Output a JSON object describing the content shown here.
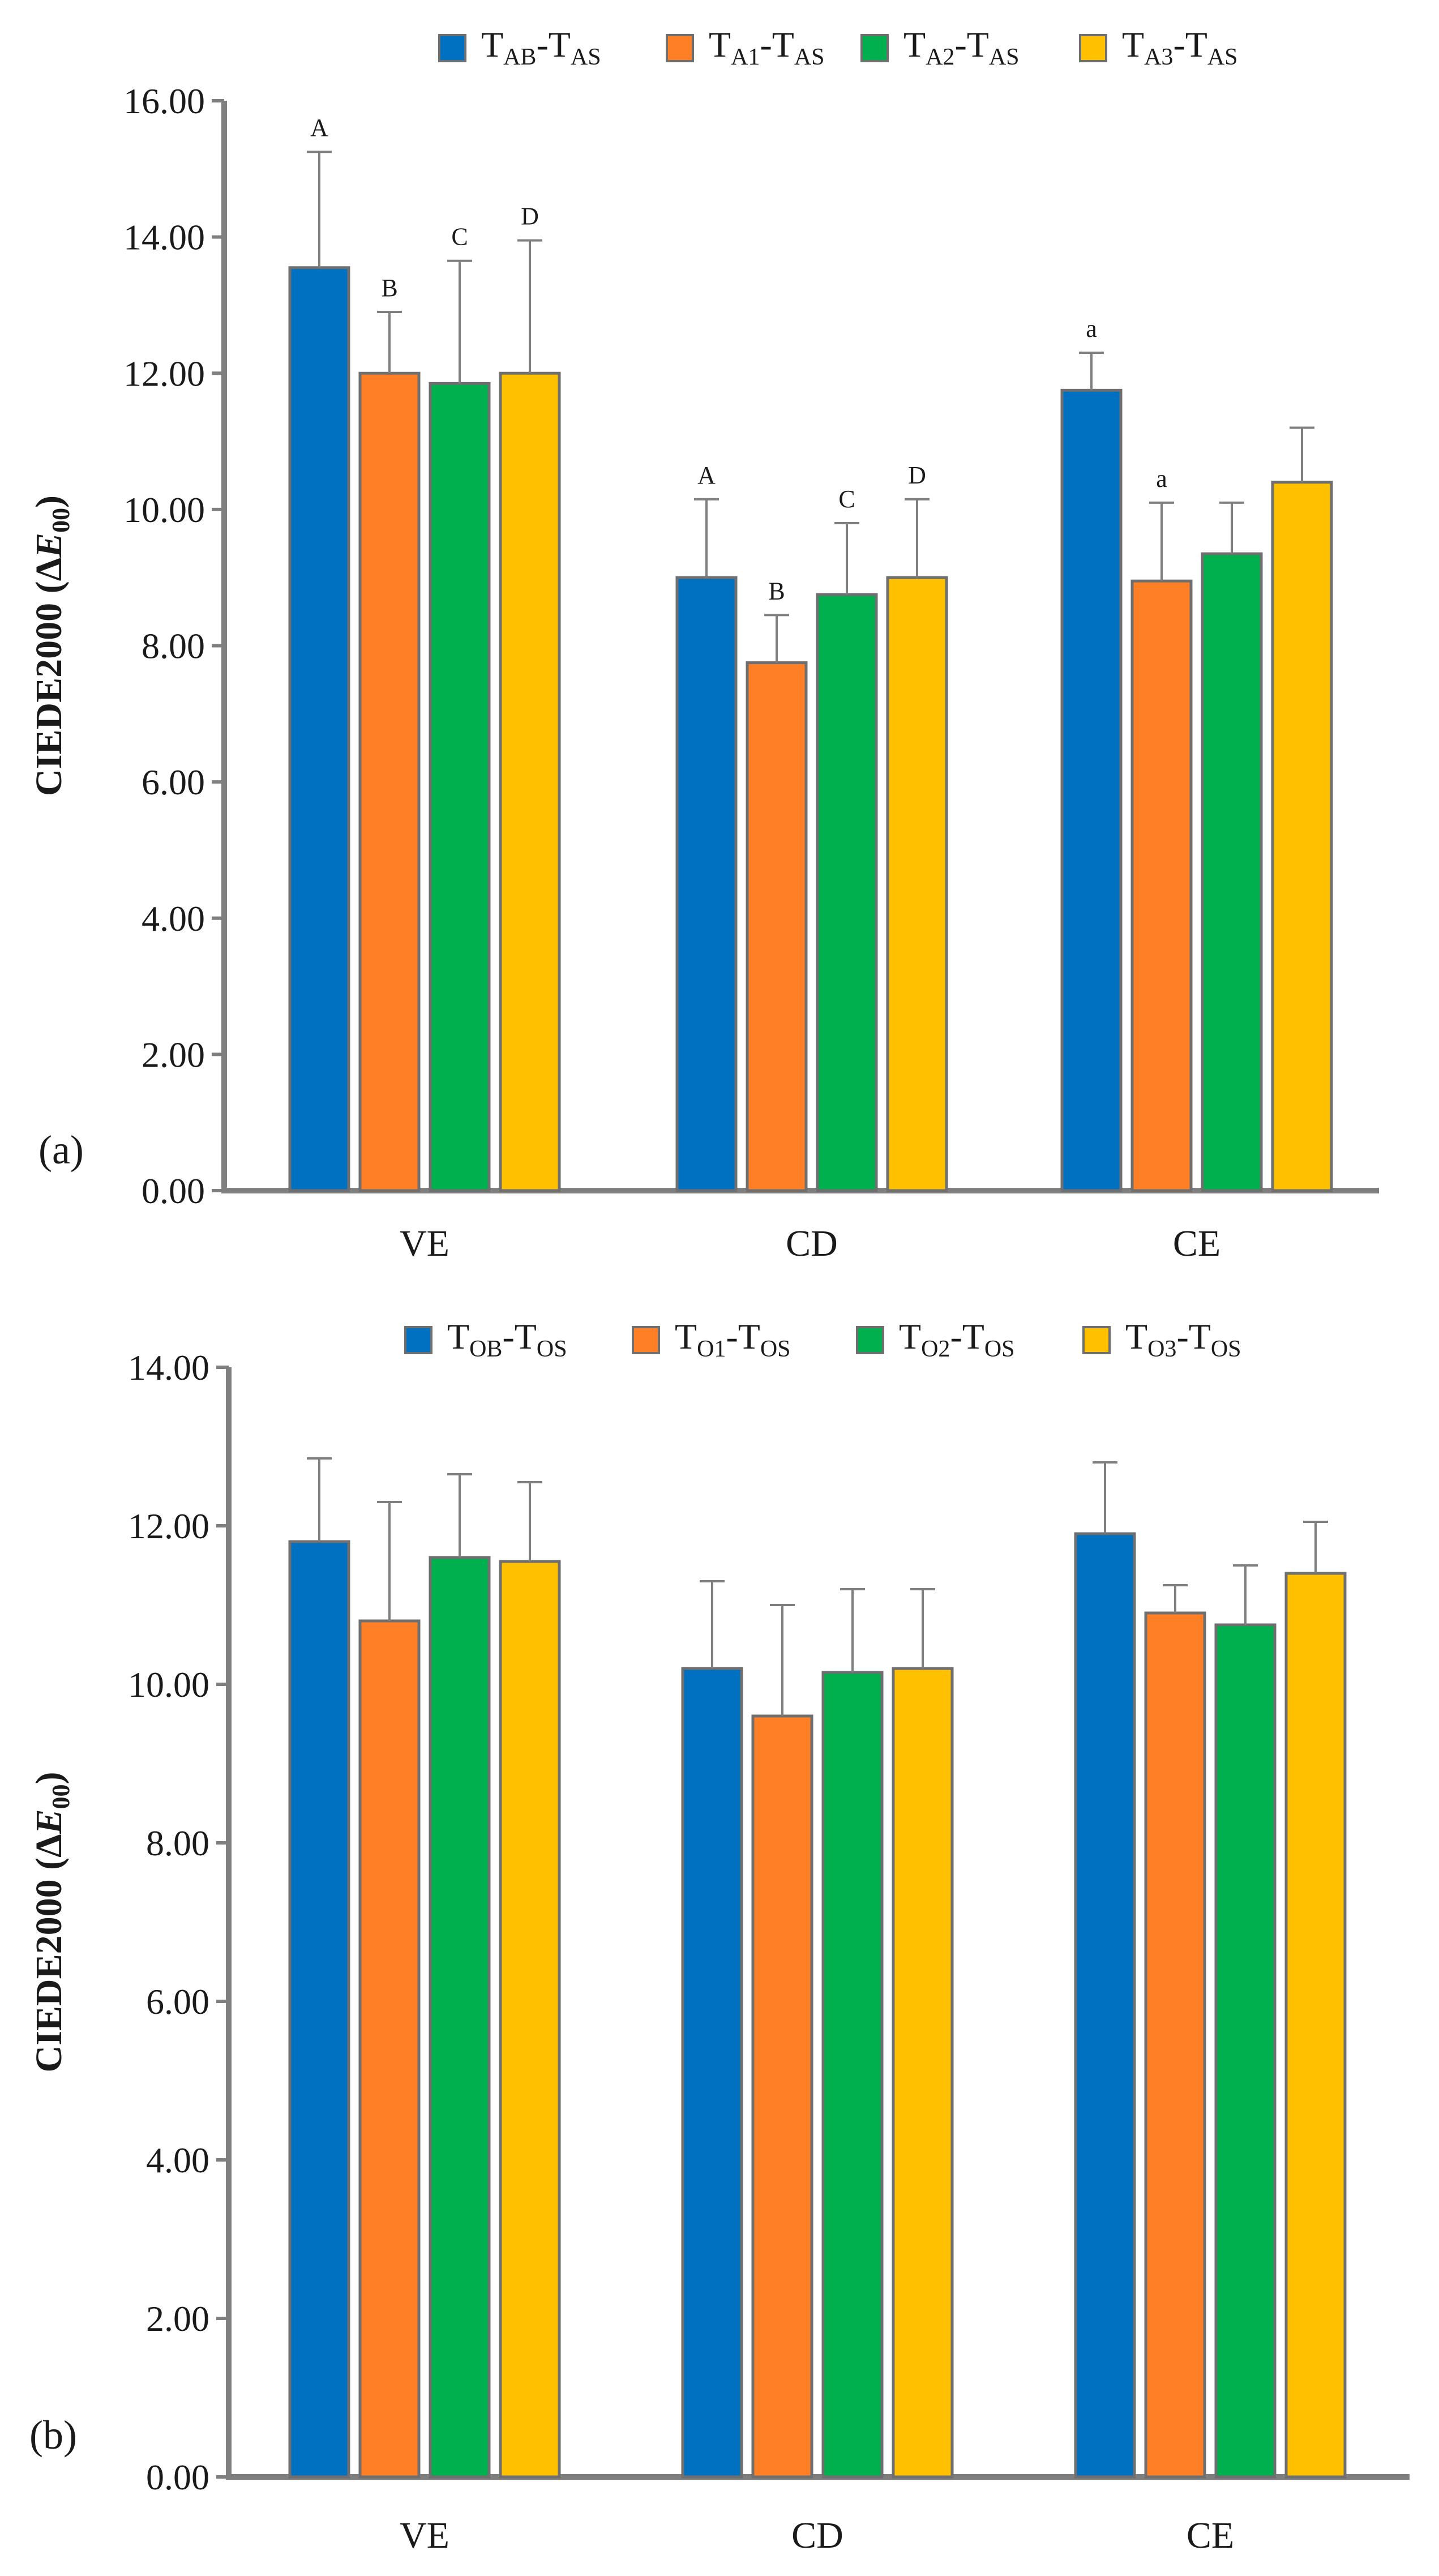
{
  "colors": {
    "series": [
      "#0070c0",
      "#ff7f27",
      "#00b04f",
      "#ffc000"
    ],
    "bar_stroke": "#6f6f6f",
    "axis": "#7f7f7f",
    "error_bar": "#7f7f7f"
  },
  "chart_data": [
    {
      "type": "bar",
      "panel_label": "(a)",
      "categories": [
        "VE",
        "CD",
        "CE"
      ],
      "ylim": [
        0,
        16
      ],
      "yticks": [
        "0.00",
        "2.00",
        "4.00",
        "6.00",
        "8.00",
        "10.00",
        "12.00",
        "14.00",
        "16.00"
      ],
      "ylabel": {
        "main": "CIEDE2000 (Δ",
        "var": "E",
        "sub": "00",
        "close": ")"
      },
      "legend_position": "top",
      "grid": false,
      "series": [
        {
          "name": {
            "base1": "T",
            "sub1": "AB",
            "base2": "-T",
            "sub2": "AS"
          },
          "values": [
            13.55,
            9.0,
            11.75
          ],
          "errors": [
            1.7,
            1.15,
            0.55
          ],
          "labels": [
            "A",
            "A",
            "a"
          ]
        },
        {
          "name": {
            "base1": "T",
            "sub1": "A1",
            "base2": "-T",
            "sub2": "AS"
          },
          "values": [
            12.0,
            7.75,
            8.95
          ],
          "errors": [
            0.9,
            0.7,
            1.15
          ],
          "labels": [
            "B",
            "B",
            "a"
          ]
        },
        {
          "name": {
            "base1": "T",
            "sub1": "A2",
            "base2": "-T",
            "sub2": "AS"
          },
          "values": [
            11.85,
            8.75,
            9.35
          ],
          "errors": [
            1.8,
            1.05,
            0.75
          ],
          "labels": [
            "C",
            "C",
            ""
          ]
        },
        {
          "name": {
            "base1": "T",
            "sub1": "A3",
            "base2": "-T",
            "sub2": "AS"
          },
          "values": [
            12.0,
            9.0,
            10.4
          ],
          "errors": [
            1.95,
            1.15,
            0.8
          ],
          "labels": [
            "D",
            "D",
            ""
          ]
        }
      ]
    },
    {
      "type": "bar",
      "panel_label": "(b)",
      "categories": [
        "VE",
        "CD",
        "CE"
      ],
      "ylim": [
        0,
        14
      ],
      "yticks": [
        "0.00",
        "2.00",
        "4.00",
        "6.00",
        "8.00",
        "10.00",
        "12.00",
        "14.00"
      ],
      "ylabel": {
        "main": "CIEDE2000 (Δ",
        "var": "E",
        "sub": "00",
        "close": ")"
      },
      "legend_position": "top",
      "grid": false,
      "series": [
        {
          "name": {
            "base1": "T",
            "sub1": "OB",
            "base2": "-T",
            "sub2": "OS"
          },
          "values": [
            11.8,
            10.2,
            11.9
          ],
          "errors": [
            1.05,
            1.1,
            0.9
          ],
          "labels": [
            "",
            "",
            ""
          ]
        },
        {
          "name": {
            "base1": "T",
            "sub1": "O1",
            "base2": "-T",
            "sub2": "OS"
          },
          "values": [
            10.8,
            9.6,
            10.9
          ],
          "errors": [
            1.5,
            1.4,
            0.35
          ],
          "labels": [
            "",
            "",
            ""
          ]
        },
        {
          "name": {
            "base1": "T",
            "sub1": "O2",
            "base2": "-T",
            "sub2": "OS"
          },
          "values": [
            11.6,
            10.15,
            10.75
          ],
          "errors": [
            1.05,
            1.05,
            0.75
          ],
          "labels": [
            "",
            "",
            ""
          ]
        },
        {
          "name": {
            "base1": "T",
            "sub1": "O3",
            "base2": "-T",
            "sub2": "OS"
          },
          "values": [
            11.55,
            10.2,
            11.4
          ],
          "errors": [
            1.0,
            1.0,
            0.65
          ],
          "labels": [
            "",
            "",
            ""
          ]
        }
      ]
    }
  ]
}
